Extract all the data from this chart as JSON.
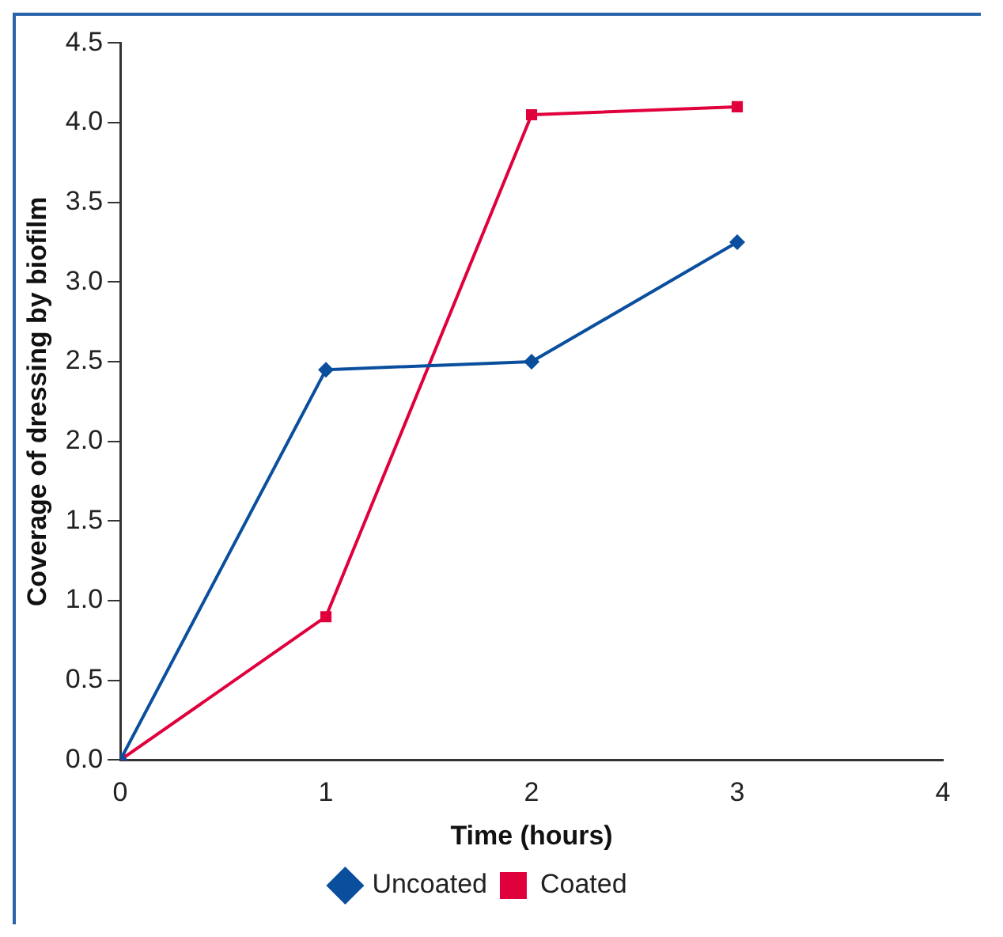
{
  "chart_data": {
    "type": "line",
    "xlabel": "Time (hours)",
    "ylabel": "Coverage of dressing by biofilm",
    "x": [
      0,
      1,
      2,
      3
    ],
    "series": [
      {
        "name": "Uncoated",
        "color": "#0a4f9e",
        "marker": "diamond",
        "values": [
          0,
          2.45,
          2.5,
          3.25
        ]
      },
      {
        "name": "Coated",
        "color": "#e0003c",
        "marker": "square",
        "values": [
          0,
          0.9,
          4.05,
          4.1
        ]
      }
    ],
    "xlim": [
      0,
      4
    ],
    "xticks": [
      0,
      1,
      2,
      3,
      4
    ],
    "ylim": [
      0,
      4.5
    ],
    "yticks": [
      {
        "value": 0,
        "label": "0.0"
      },
      0.5,
      {
        "value": 1,
        "label": "1.0"
      },
      1.5,
      {
        "value": 2,
        "label": "2.0"
      },
      2.5,
      {
        "value": 3,
        "label": "3.0"
      },
      3.5,
      {
        "value": 4,
        "label": "4.0"
      },
      4.5
    ],
    "grid": false,
    "legend": "bottom",
    "line_style": "solid"
  }
}
